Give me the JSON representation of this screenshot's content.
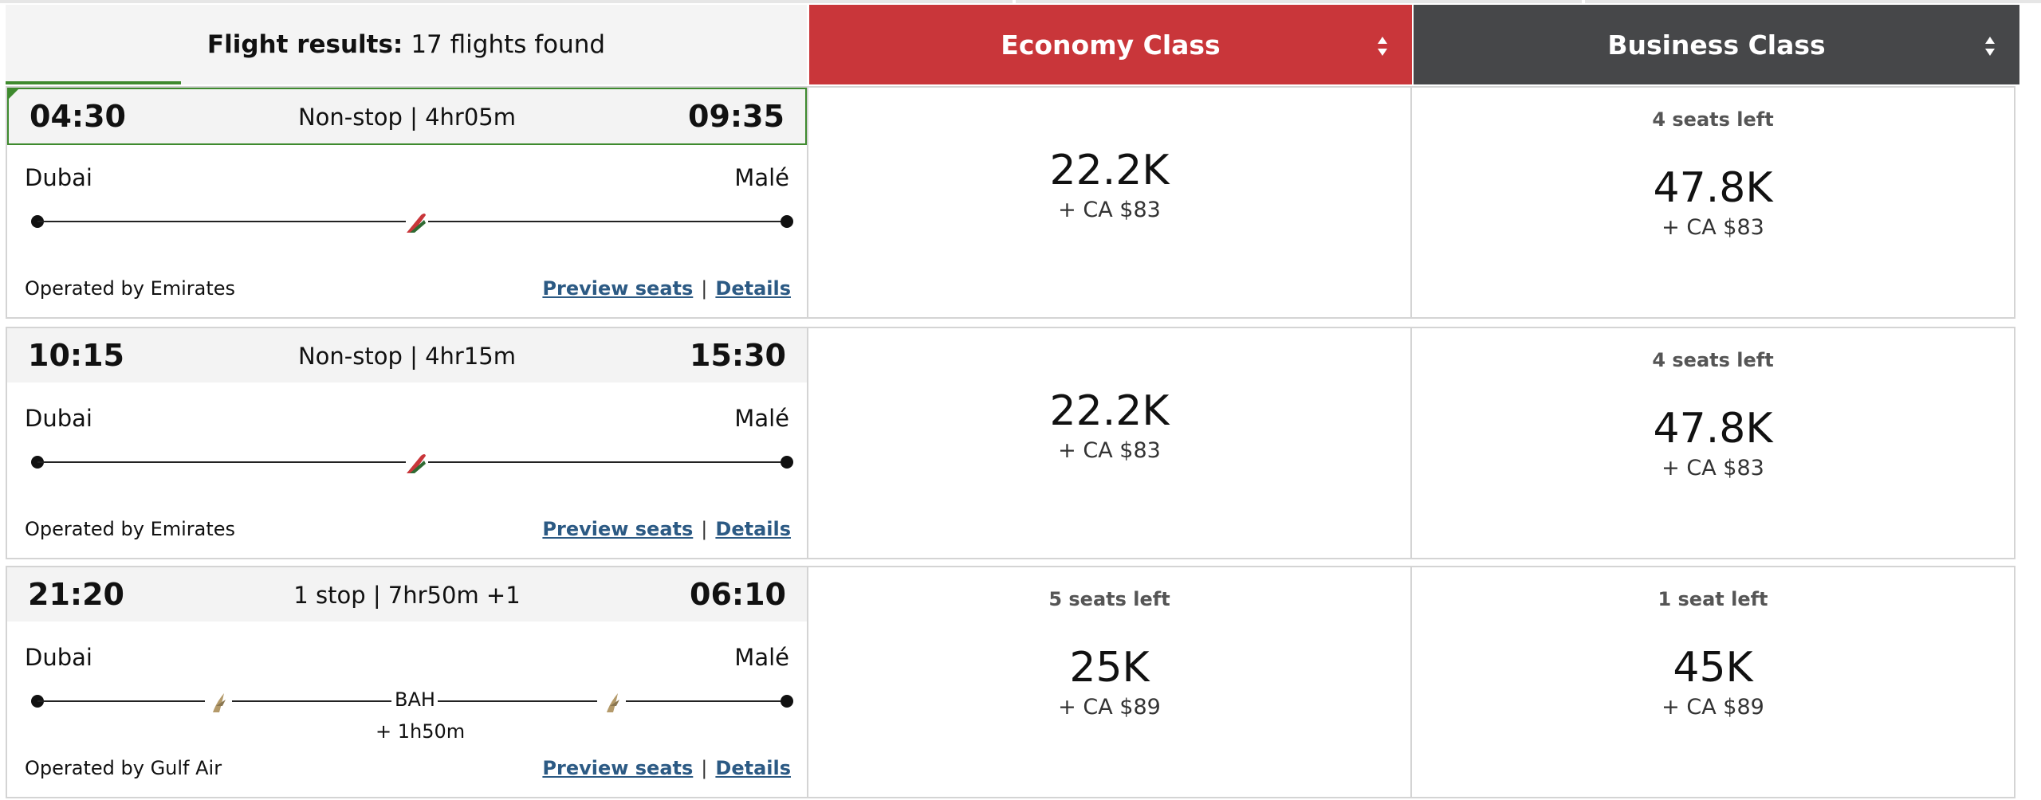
{
  "header": {
    "results_label": "Flight results:",
    "results_count": "17 flights found",
    "economy_label": "Economy Class",
    "business_label": "Business Class",
    "economy_color": "#c9363a",
    "business_color": "#464749",
    "accent_color": "#3e8a2e"
  },
  "flights": [
    {
      "depart": "04:30",
      "arrive": "09:35",
      "duration": "Non-stop | 4hr05m",
      "from": "Dubai",
      "to": "Malé",
      "operated": "Operated by Emirates",
      "preview": "Preview seats",
      "sep": "|",
      "details": "Details",
      "selected": true,
      "stop": "",
      "layover": "",
      "economy": {
        "seats": "",
        "price": "22.2K",
        "fee": "+ CA $83"
      },
      "business": {
        "seats": "4 seats left",
        "price": "47.8K",
        "fee": "+ CA $83"
      }
    },
    {
      "depart": "10:15",
      "arrive": "15:30",
      "duration": "Non-stop | 4hr15m",
      "from": "Dubai",
      "to": "Malé",
      "operated": "Operated by Emirates",
      "preview": "Preview seats",
      "sep": "|",
      "details": "Details",
      "selected": false,
      "stop": "",
      "layover": "",
      "economy": {
        "seats": "",
        "price": "22.2K",
        "fee": "+ CA $83"
      },
      "business": {
        "seats": "4 seats left",
        "price": "47.8K",
        "fee": "+ CA $83"
      }
    },
    {
      "depart": "21:20",
      "arrive": "06:10",
      "duration": "1 stop | 7hr50m +1",
      "from": "Dubai",
      "to": "Malé",
      "operated": "Operated by Gulf Air",
      "preview": "Preview seats",
      "sep": "|",
      "details": "Details",
      "selected": false,
      "stop": "BAH",
      "layover": "+ 1h50m",
      "economy": {
        "seats": "5 seats left",
        "price": "25K",
        "fee": "+ CA $89"
      },
      "business": {
        "seats": "1 seat left",
        "price": "45K",
        "fee": "+ CA $89"
      }
    }
  ]
}
